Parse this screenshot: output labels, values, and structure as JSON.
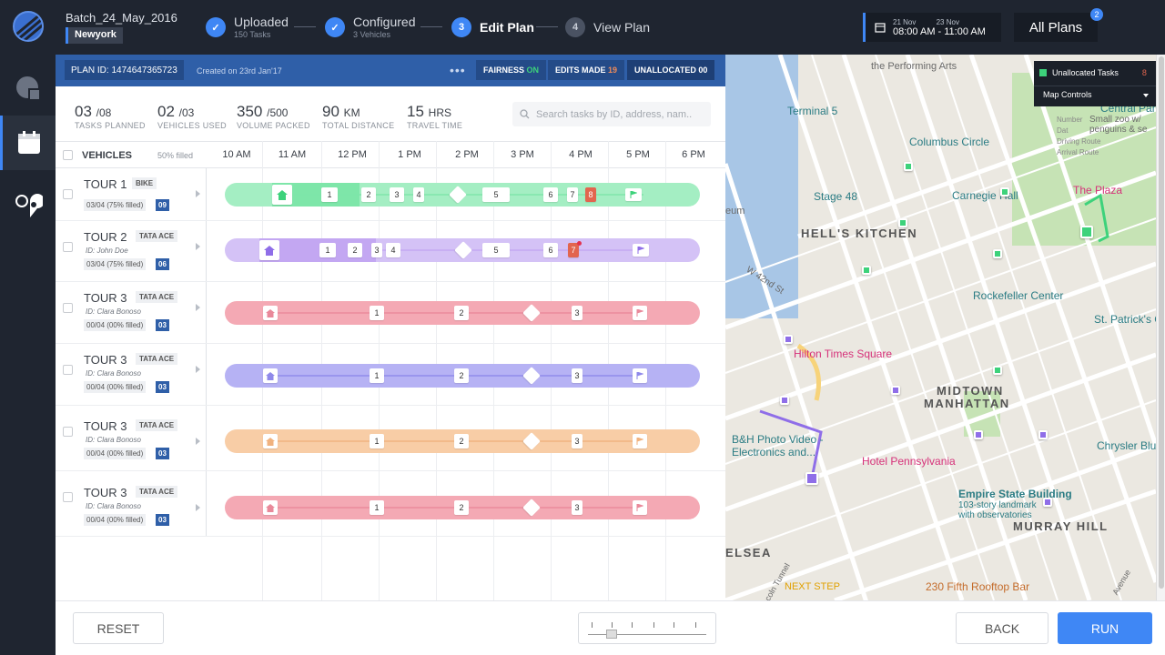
{
  "header": {
    "batch_name": "Batch_24_May_2016",
    "city": "Newyork",
    "steps": [
      {
        "num": "✓",
        "label": "Uploaded",
        "sub": "150 Tasks"
      },
      {
        "num": "✓",
        "label": "Configured",
        "sub": "3 Vehicles"
      },
      {
        "num": "3",
        "label": "Edit Plan",
        "sub": ""
      },
      {
        "num": "4",
        "label": "View Plan",
        "sub": ""
      }
    ],
    "date_from": "21 Nov",
    "date_to": "23 Nov",
    "time_range": "08:00 AM - 11:00 AM",
    "all_plans": "All Plans",
    "all_plans_count": "2"
  },
  "plan": {
    "plan_id": "PLAN ID: 1474647365723",
    "created": "Created on 23rd Jan'17",
    "more": "•••",
    "fairness_label": "FAIRNESS",
    "fairness_value": "ON",
    "edits_label": "EDITS MADE",
    "edits_value": "19",
    "unallocated_label": "UNALLOCATED",
    "unallocated_value": "00"
  },
  "stats": [
    {
      "value": "03",
      "unit": "/08",
      "label": "TASKS PLANNED"
    },
    {
      "value": "02",
      "unit": "/03",
      "label": "VEHICLES USED"
    },
    {
      "value": "350",
      "unit": "/500",
      "label": "VOLUME PACKED"
    },
    {
      "value": "90",
      "unit": "KM",
      "label": "TOTAL DISTANCE"
    },
    {
      "value": "15",
      "unit": "HRS",
      "label": "TRAVEL TIME"
    }
  ],
  "search_placeholder": "Search tasks by ID, address, nam..",
  "timeline": {
    "vehicles_header": "VEHICLES",
    "filled": "50% filled",
    "hours": [
      "10 AM",
      "11 AM",
      "12 PM",
      "1 PM",
      "2 PM",
      "3 PM",
      "4 PM",
      "5 PM",
      "6 PM"
    ]
  },
  "tours": [
    {
      "name": "TOUR 1",
      "type": "BIKE",
      "driver": "",
      "capacity": "03/04 (75% filled)",
      "num": "09",
      "color": "#7ee6a9"
    },
    {
      "name": "TOUR 2",
      "type": "TATA ACE",
      "driver": "ID: John Doe",
      "capacity": "03/04 (75% filled)",
      "num": "06",
      "color": "#c3a7f2"
    },
    {
      "name": "TOUR 3",
      "type": "TATA ACE",
      "driver": "ID: Clara Bonoso",
      "capacity": "00/04 (00% filled)",
      "num": "03",
      "color": "#f4a9b4"
    },
    {
      "name": "TOUR 3",
      "type": "TATA ACE",
      "driver": "ID: Clara Bonoso",
      "capacity": "00/04 (00% filled)",
      "num": "03",
      "color": "#b6b2f4"
    },
    {
      "name": "TOUR 3",
      "type": "TATA ACE",
      "driver": "ID: Clara Bonoso",
      "capacity": "00/04 (00% filled)",
      "num": "03",
      "color": "#f8cda6"
    },
    {
      "name": "TOUR 3",
      "type": "TATA ACE",
      "driver": "ID: Clara Bonoso",
      "capacity": "00/04 (00% filled)",
      "num": "03",
      "color": "#f4a9b4"
    }
  ],
  "tour_stops": [
    [
      "1",
      "2",
      "3",
      "4",
      "5",
      "6",
      "7",
      "8"
    ],
    [
      "1",
      "2",
      "3",
      "4",
      "5",
      "6",
      "7"
    ],
    [
      "1",
      "2",
      "3"
    ],
    [
      "1",
      "2",
      "3"
    ],
    [
      "1",
      "2",
      "3"
    ],
    [
      "1",
      "2",
      "3"
    ]
  ],
  "footer": {
    "reset": "RESET",
    "back": "BACK",
    "run": "RUN"
  },
  "map": {
    "controls": {
      "unallocated": "Unallocated Tasks",
      "unallocated_count": "8",
      "map_controls": "Map Controls"
    },
    "legend": [
      "Number",
      "Dat",
      "Driving Route",
      "Arrival Route"
    ],
    "places": [
      "the Performing Arts",
      "Terminal 5",
      "Columbus Circle",
      "Central Park",
      "Small zoo w/ penguins & se",
      "Stage 48",
      "Carnegie Hall",
      "The Plaza",
      "HELL'S KITCHEN",
      "W 42nd St",
      "Rockefeller Center",
      "St. Patrick's C",
      "Hilton Times Square",
      "MIDTOWN",
      "MANHATTAN",
      "B&H Photo Video - Electronics and...",
      "Hotel Pennsylvania",
      "Chrysler Blue",
      "Empire State Building",
      "103-story landmark with observatories",
      "MURRAY HILL",
      "ELSEA",
      "NEXT STEP",
      "230 Fifth Rooftop Bar",
      "eum",
      "Lincoln Tunnel",
      "Avenue"
    ]
  },
  "colors": {
    "topbar": "#1f2530",
    "accent": "#3f87f5",
    "planbar": "#2f5fa8",
    "fairness_on": "#3dd27b",
    "edits": "#f08c5a",
    "highlight_stop": "#e2654f"
  }
}
